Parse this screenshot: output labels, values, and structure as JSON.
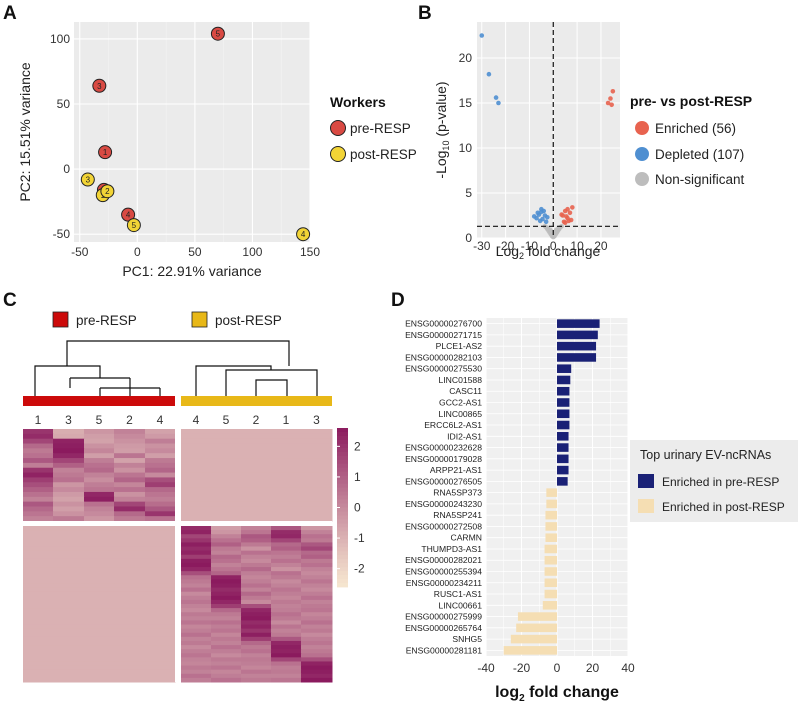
{
  "panels": {
    "a": "A",
    "b": "B",
    "c": "C",
    "d": "D"
  },
  "colors": {
    "pre": "#d94a43",
    "post": "#f2d436",
    "panel_bg": "#ebebeb",
    "enriched": "#e8634f",
    "depleted": "#4f8fd1",
    "nonsig": "#bdbdbd",
    "heat_low": "#f6e6d0",
    "heat_high": "#8b1a5e",
    "bar_pre": "#1a2176",
    "bar_post": "#f5deb3",
    "group_pre": "#cc0a0a",
    "group_post": "#e8b818"
  },
  "chart_data": [
    {
      "id": "pca",
      "type": "scatter",
      "xlabel": "PC1: 22.91% variance",
      "ylabel": "PC2: 15.51% variance",
      "xlim": [
        -55,
        150
      ],
      "ylim": [
        -56,
        113
      ],
      "xticks": [
        -50,
        0,
        50,
        100,
        150
      ],
      "yticks": [
        -50,
        0,
        50,
        100
      ],
      "legend": {
        "title": "Workers",
        "entries": [
          "pre-RESP",
          "post-RESP"
        ]
      },
      "points": [
        {
          "group": "pre",
          "label": "5",
          "x": 70,
          "y": 104
        },
        {
          "group": "pre",
          "label": "3",
          "x": -33,
          "y": 64
        },
        {
          "group": "pre",
          "label": "1",
          "x": -28,
          "y": 13
        },
        {
          "group": "pre",
          "label": "2",
          "x": -29,
          "y": -16
        },
        {
          "group": "pre",
          "label": "4",
          "x": -8,
          "y": -35
        },
        {
          "group": "post",
          "label": "3",
          "x": -43,
          "y": -8
        },
        {
          "group": "post",
          "label": "1",
          "x": -30,
          "y": -20
        },
        {
          "group": "post",
          "label": "2",
          "x": -26,
          "y": -17
        },
        {
          "group": "post",
          "label": "5",
          "x": -3,
          "y": -43
        },
        {
          "group": "post",
          "label": "4",
          "x": 144,
          "y": -50
        }
      ]
    },
    {
      "id": "volcano",
      "type": "scatter",
      "xlabel": "Log2 fold change",
      "ylabel": "-Log10 (p-value)",
      "xlim": [
        -32,
        28
      ],
      "ylim": [
        0,
        24
      ],
      "xticks": [
        -30,
        -20,
        -10,
        0,
        10,
        20
      ],
      "yticks": [
        0,
        5,
        10,
        15,
        20
      ],
      "threshold_y": 1.3,
      "legend": {
        "title": "pre- vs post-RESP",
        "entries": [
          "Enriched (56)",
          "Depleted (107)",
          "Non-significant"
        ]
      },
      "series": [
        {
          "name": "Enriched",
          "x": [
            23,
            24,
            25,
            24.5,
            4,
            5,
            6,
            7,
            8,
            4.5,
            6.5,
            5.5,
            3.5,
            7.5,
            5,
            6
          ],
          "y": [
            15,
            15.5,
            16.3,
            14.8,
            2.5,
            3,
            2.2,
            2.8,
            3.4,
            1.8,
            1.9,
            2.4,
            2.6,
            2.0,
            1.7,
            3.2
          ]
        },
        {
          "name": "Depleted",
          "x": [
            -30,
            -27,
            -24,
            -23,
            -5,
            -6,
            -4,
            -7,
            -3.5,
            -5.5,
            -4.5,
            -6.5,
            -3,
            -2.5,
            -8,
            -5
          ],
          "y": [
            22.5,
            18.2,
            15.6,
            15.0,
            3.2,
            2.6,
            3.0,
            2.2,
            2.5,
            1.9,
            2.1,
            2.8,
            1.8,
            2.3,
            2.4,
            2.9
          ]
        },
        {
          "name": "Non-significant",
          "x": [
            -3,
            -2.5,
            -2,
            -1.5,
            -1,
            -0.5,
            0.5,
            1,
            1.5,
            2,
            2.5,
            3,
            -3.5,
            3.5,
            -1.2,
            1.2,
            0,
            -2.2,
            2.2,
            -0.8,
            0.8
          ],
          "y": [
            1.2,
            1.0,
            0.8,
            0.6,
            0.4,
            0.2,
            0.2,
            0.4,
            0.6,
            0.8,
            1.0,
            1.2,
            1.3,
            1.3,
            0.9,
            0.9,
            0.1,
            1.1,
            1.1,
            0.7,
            0.7
          ]
        }
      ]
    },
    {
      "id": "heatmap",
      "type": "heatmap",
      "groups": [
        "pre-RESP",
        "post-RESP"
      ],
      "column_labels": [
        "1",
        "3",
        "5",
        "2",
        "4",
        "4",
        "5",
        "2",
        "1",
        "3"
      ],
      "colorbar": {
        "min": -2.6,
        "max": 2.6,
        "ticks": [
          2,
          1,
          0,
          -1,
          -2
        ],
        "tick_labels": [
          "2",
          "1",
          "0",
          "-1",
          "-2"
        ]
      },
      "cluster_a_rows": 19,
      "cluster_b_rows": 38,
      "cluster_a": [
        [
          2.0,
          -0.9,
          -0.3,
          0.2,
          -0.6,
          -1,
          -1,
          -1,
          -1,
          -1
        ],
        [
          2.2,
          -0.8,
          -0.5,
          0.0,
          -0.4,
          -1,
          -1,
          -1,
          -1,
          -1
        ],
        [
          1.6,
          2.4,
          -0.6,
          -0.2,
          0.3,
          -1,
          -1,
          -1,
          -1,
          -1
        ],
        [
          0.8,
          2.5,
          -0.2,
          -0.4,
          -0.2,
          -1,
          -1,
          -1,
          -1,
          -1
        ],
        [
          0.4,
          2.6,
          0.1,
          -0.5,
          0.0,
          -1,
          -1,
          -1,
          -1,
          -1
        ],
        [
          0.6,
          2.3,
          -0.5,
          0.5,
          -0.5,
          -1,
          -1,
          -1,
          -1,
          -1
        ],
        [
          1.2,
          1.6,
          0.3,
          -0.6,
          0.4,
          -1,
          -1,
          -1,
          -1,
          -1
        ],
        [
          0.3,
          1.0,
          0.6,
          0.2,
          0.6,
          -1,
          -1,
          -1,
          -1,
          -1
        ],
        [
          2.0,
          0.2,
          0.8,
          -0.2,
          0.9,
          -1,
          -1,
          -1,
          -1,
          -1
        ],
        [
          2.4,
          0.4,
          0.2,
          0.5,
          0.0,
          -1,
          -1,
          -1,
          -1,
          -1
        ],
        [
          1.8,
          0.6,
          -0.1,
          0.9,
          1.4,
          -1,
          -1,
          -1,
          -1,
          -1
        ],
        [
          1.4,
          -0.3,
          0.3,
          0.1,
          1.8,
          -1,
          -1,
          -1,
          -1,
          -1
        ],
        [
          1.0,
          0.0,
          0.5,
          0.6,
          0.8,
          -1,
          -1,
          -1,
          -1,
          -1
        ],
        [
          0.6,
          -0.4,
          2.3,
          -0.2,
          0.5,
          -1,
          -1,
          -1,
          -1,
          -1
        ],
        [
          0.2,
          -0.6,
          2.5,
          0.2,
          0.3,
          -1,
          -1,
          -1,
          -1,
          -1
        ],
        [
          1.2,
          -0.2,
          0.6,
          1.6,
          0.7,
          -1,
          -1,
          -1,
          -1,
          -1
        ],
        [
          0.8,
          -0.5,
          0.2,
          2.2,
          1.2,
          -1,
          -1,
          -1,
          -1,
          -1
        ],
        [
          0.5,
          -0.2,
          0.0,
          0.8,
          2.0,
          -1,
          -1,
          -1,
          -1,
          -1
        ],
        [
          0.2,
          0.4,
          -0.3,
          0.4,
          0.6,
          -1,
          -1,
          -1,
          -1,
          -1
        ]
      ],
      "cluster_b": [
        [
          -1,
          -1,
          -1,
          -1,
          -1,
          2.2,
          -0.5,
          0.2,
          1.2,
          -0.3
        ],
        [
          -1,
          -1,
          -1,
          -1,
          -1,
          2.4,
          -0.3,
          0.5,
          2.2,
          0.2
        ],
        [
          -1,
          -1,
          -1,
          -1,
          -1,
          1.6,
          0.2,
          1.2,
          2.3,
          0.6
        ],
        [
          -1,
          -1,
          -1,
          -1,
          -1,
          2.0,
          0.6,
          1.0,
          1.6,
          0.4
        ],
        [
          -1,
          -1,
          -1,
          -1,
          -1,
          2.5,
          1.0,
          0.4,
          0.8,
          1.2
        ],
        [
          -1,
          -1,
          -1,
          -1,
          -1,
          2.2,
          0.4,
          -0.2,
          1.0,
          1.6
        ],
        [
          -1,
          -1,
          -1,
          -1,
          -1,
          2.4,
          0.2,
          0.6,
          0.5,
          0.8
        ],
        [
          -1,
          -1,
          -1,
          -1,
          -1,
          1.8,
          0.8,
          0.2,
          0.3,
          1.0
        ],
        [
          -1,
          -1,
          -1,
          -1,
          -1,
          2.5,
          0.6,
          0.0,
          0.6,
          0.4
        ],
        [
          -1,
          -1,
          -1,
          -1,
          -1,
          2.6,
          0.2,
          0.4,
          0.2,
          0.6
        ],
        [
          -1,
          -1,
          -1,
          -1,
          -1,
          2.3,
          0.5,
          0.8,
          -0.2,
          0.2
        ],
        [
          -1,
          -1,
          -1,
          -1,
          -1,
          1.4,
          0.9,
          0.3,
          0.6,
          0.0
        ],
        [
          -1,
          -1,
          -1,
          -1,
          -1,
          0.6,
          2.4,
          0.1,
          0.4,
          0.2
        ],
        [
          -1,
          -1,
          -1,
          -1,
          -1,
          0.4,
          2.6,
          0.3,
          0.0,
          0.5
        ],
        [
          -1,
          -1,
          -1,
          -1,
          -1,
          0.2,
          2.5,
          0.6,
          0.2,
          0.2
        ],
        [
          -1,
          -1,
          -1,
          -1,
          -1,
          0.6,
          2.2,
          0.2,
          0.5,
          0.0
        ],
        [
          -1,
          -1,
          -1,
          -1,
          -1,
          0.0,
          2.4,
          0.8,
          0.3,
          0.3
        ],
        [
          -1,
          -1,
          -1,
          -1,
          -1,
          0.3,
          2.6,
          0.4,
          0.1,
          0.6
        ],
        [
          -1,
          -1,
          -1,
          -1,
          -1,
          0.5,
          2.3,
          0.0,
          0.4,
          0.2
        ],
        [
          -1,
          -1,
          -1,
          -1,
          -1,
          0.2,
          1.8,
          1.4,
          0.2,
          0.4
        ],
        [
          -1,
          -1,
          -1,
          -1,
          -1,
          0.0,
          0.8,
          2.3,
          0.3,
          0.5
        ],
        [
          -1,
          -1,
          -1,
          -1,
          -1,
          0.4,
          0.4,
          2.5,
          0.6,
          0.1
        ],
        [
          -1,
          -1,
          -1,
          -1,
          -1,
          0.2,
          0.2,
          2.6,
          0.4,
          0.3
        ],
        [
          -1,
          -1,
          -1,
          -1,
          -1,
          0.5,
          0.6,
          2.2,
          0.0,
          0.6
        ],
        [
          -1,
          -1,
          -1,
          -1,
          -1,
          0.1,
          0.3,
          2.4,
          0.5,
          0.2
        ],
        [
          -1,
          -1,
          -1,
          -1,
          -1,
          0.3,
          0.5,
          2.0,
          0.2,
          0.4
        ],
        [
          -1,
          -1,
          -1,
          -1,
          -1,
          0.6,
          0.1,
          2.5,
          0.4,
          0.0
        ],
        [
          -1,
          -1,
          -1,
          -1,
          -1,
          0.2,
          0.4,
          1.8,
          1.2,
          0.3
        ],
        [
          -1,
          -1,
          -1,
          -1,
          -1,
          0.4,
          0.2,
          0.8,
          2.3,
          0.5
        ],
        [
          -1,
          -1,
          -1,
          -1,
          -1,
          0.0,
          0.6,
          0.4,
          2.5,
          0.2
        ],
        [
          -1,
          -1,
          -1,
          -1,
          -1,
          0.3,
          0.3,
          0.6,
          2.4,
          0.4
        ],
        [
          -1,
          -1,
          -1,
          -1,
          -1,
          0.5,
          0.0,
          0.2,
          2.6,
          0.6
        ],
        [
          -1,
          -1,
          -1,
          -1,
          -1,
          0.2,
          0.4,
          0.4,
          1.6,
          1.4
        ],
        [
          -1,
          -1,
          -1,
          -1,
          -1,
          0.1,
          0.2,
          0.3,
          0.6,
          2.4
        ],
        [
          -1,
          -1,
          -1,
          -1,
          -1,
          0.4,
          0.5,
          0.1,
          0.3,
          2.6
        ],
        [
          -1,
          -1,
          -1,
          -1,
          -1,
          0.2,
          0.1,
          0.5,
          0.4,
          2.5
        ],
        [
          -1,
          -1,
          -1,
          -1,
          -1,
          0.6,
          0.3,
          0.2,
          0.2,
          2.3
        ],
        [
          -1,
          -1,
          -1,
          -1,
          -1,
          0.3,
          0.6,
          0.4,
          0.5,
          2.6
        ]
      ]
    },
    {
      "id": "ncrna_bars",
      "type": "bar",
      "orientation": "horizontal",
      "xlabel": "log2 fold change",
      "xlim": [
        -40,
        40
      ],
      "xticks": [
        -40,
        -20,
        0,
        20,
        40
      ],
      "legend": {
        "title": "Top urinary EV-ncRNAs",
        "entries": [
          "Enriched in pre-RESP",
          "Enriched in post-RESP"
        ]
      },
      "categories": [
        "ENSG00000276700",
        "ENSG00000271715",
        "PLCE1-AS2",
        "ENSG00000282103",
        "ENSG00000275530",
        "LINC01588",
        "CASC11",
        "GCC2-AS1",
        "LINC00865",
        "ERCC6L2-AS1",
        "IDI2-AS1",
        "ENSG00000232628",
        "ENSG00000179028",
        "ARPP21-AS1",
        "ENSG00000276505",
        "RNA5SP373",
        "ENSG00000243230",
        "RNA5SP241",
        "ENSG00000272508",
        "CARMN",
        "THUMPD3-AS1",
        "ENSG00000282021",
        "ENSG00000255394",
        "ENSG00000234211",
        "RUSC1-AS1",
        "LINC00661",
        "ENSG00000275999",
        "ENSG00000265764",
        "SNHG5",
        "ENSG00000281181"
      ],
      "values": [
        24,
        23,
        22,
        22,
        8,
        7.5,
        7,
        7,
        7,
        7,
        6.5,
        6.5,
        6.5,
        6.5,
        6,
        -6,
        -6,
        -6.5,
        -6.5,
        -6.5,
        -7,
        -7,
        -7,
        -7,
        -7,
        -8,
        -22,
        -23,
        -26,
        -30
      ],
      "groups": [
        "pre",
        "pre",
        "pre",
        "pre",
        "pre",
        "pre",
        "pre",
        "pre",
        "pre",
        "pre",
        "pre",
        "pre",
        "pre",
        "pre",
        "pre",
        "post",
        "post",
        "post",
        "post",
        "post",
        "post",
        "post",
        "post",
        "post",
        "post",
        "post",
        "post",
        "post",
        "post",
        "post"
      ]
    }
  ]
}
